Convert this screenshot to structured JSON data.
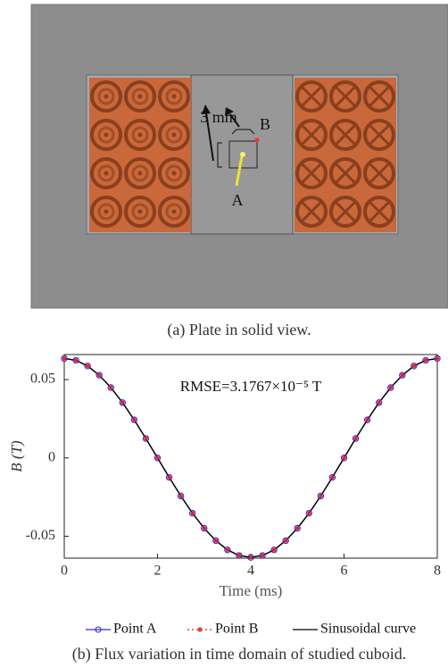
{
  "plate": {
    "dimension_label": "3 mm",
    "point_b_label": "B",
    "point_a_label": "A"
  },
  "caption_a": "(a)  Plate in solid view.",
  "chart_data": {
    "type": "line",
    "annotation": "RMSE=3.1767×10⁻⁵ T",
    "x_label": "Time (ms)",
    "y_label": "B (T)",
    "x": [
      0,
      0.25,
      0.5,
      0.75,
      1,
      1.25,
      1.5,
      1.75,
      2,
      2.25,
      2.5,
      2.75,
      3,
      3.25,
      3.5,
      3.75,
      4,
      4.25,
      4.5,
      4.75,
      5,
      5.25,
      5.5,
      5.75,
      6,
      6.25,
      6.5,
      6.75,
      7,
      7.25,
      7.5,
      7.75,
      8
    ],
    "series": [
      {
        "name": "Point A",
        "color": "#2a2ad8",
        "marker": "circle",
        "values": [
          0.0635,
          0.0623,
          0.0587,
          0.0528,
          0.0449,
          0.0353,
          0.0243,
          0.0124,
          0,
          -0.0124,
          -0.0243,
          -0.0353,
          -0.0449,
          -0.0528,
          -0.0587,
          -0.0623,
          -0.0635,
          -0.0623,
          -0.0587,
          -0.0528,
          -0.0449,
          -0.0353,
          -0.0243,
          -0.0124,
          0,
          0.0124,
          0.0243,
          0.0353,
          0.0449,
          0.0528,
          0.0587,
          0.0623,
          0.0635
        ]
      },
      {
        "name": "Point B",
        "color": "#e02020",
        "marker": "star",
        "values": [
          0.0635,
          0.0623,
          0.0587,
          0.0528,
          0.0449,
          0.0353,
          0.0243,
          0.0124,
          0,
          -0.0124,
          -0.0243,
          -0.0353,
          -0.0449,
          -0.0528,
          -0.0587,
          -0.0623,
          -0.0635,
          -0.0623,
          -0.0587,
          -0.0528,
          -0.0449,
          -0.0353,
          -0.0243,
          -0.0124,
          0,
          0.0124,
          0.0243,
          0.0353,
          0.0449,
          0.0528,
          0.0587,
          0.0623,
          0.0635
        ]
      },
      {
        "name": "Sinusoidal curve",
        "color": "#000000",
        "marker": "line",
        "values": [
          0.0635,
          0.0623,
          0.0587,
          0.0528,
          0.0449,
          0.0353,
          0.0243,
          0.0124,
          0,
          -0.0124,
          -0.0243,
          -0.0353,
          -0.0449,
          -0.0528,
          -0.0587,
          -0.0623,
          -0.0635,
          -0.0623,
          -0.0587,
          -0.0528,
          -0.0449,
          -0.0353,
          -0.0243,
          -0.0124,
          0,
          0.0124,
          0.0243,
          0.0353,
          0.0449,
          0.0528,
          0.0587,
          0.0623,
          0.0635
        ]
      }
    ],
    "xlim": [
      0,
      8
    ],
    "xticks": [
      0,
      2,
      4,
      6,
      8
    ],
    "ylim": [
      -0.064,
      0.066
    ],
    "yticks": [
      -0.05,
      0,
      0.05
    ]
  },
  "caption_b": "(b)  Flux variation in time domain of studied cuboid."
}
